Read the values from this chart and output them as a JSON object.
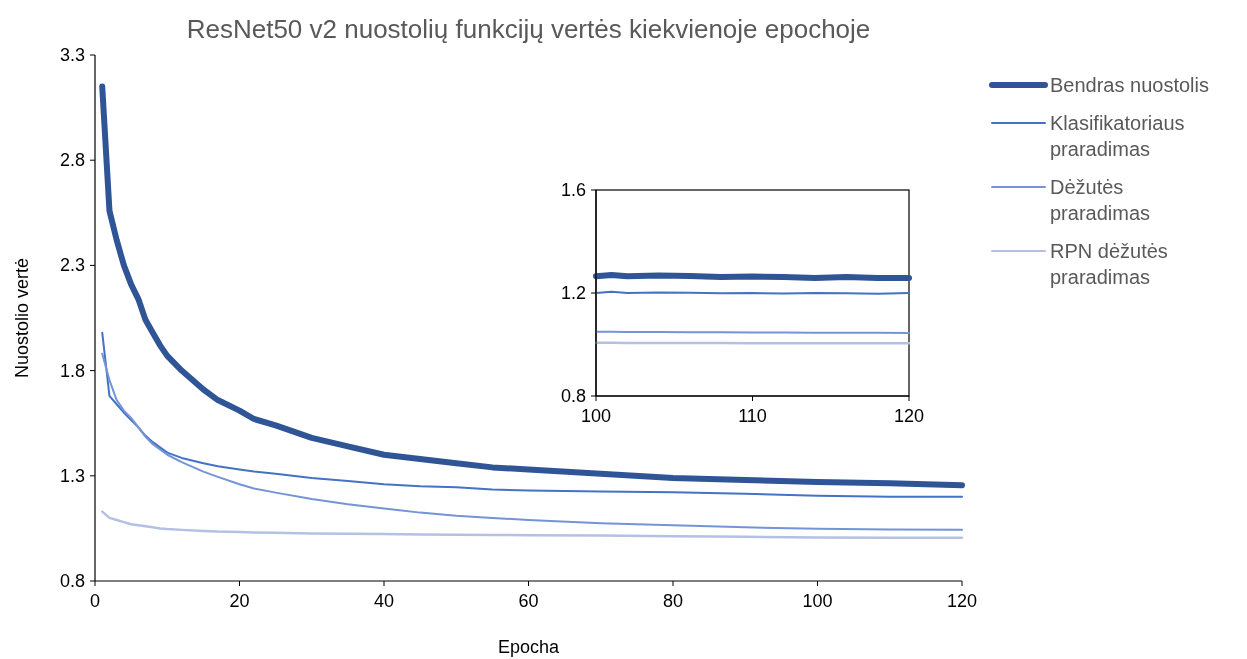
{
  "chart_data": [
    {
      "type": "line",
      "title": "ResNet50 v2 nuostolių funkcijų vertės kiekvienoje epochoje",
      "xlabel": "Epocha",
      "ylabel": "Nuostolio vertė",
      "xlim": [
        0,
        120
      ],
      "xticks": [
        0,
        20,
        40,
        60,
        80,
        100,
        120
      ],
      "ylim": [
        0.8,
        3.3
      ],
      "yticks": [
        0.8,
        1.3,
        1.8,
        2.3,
        2.8,
        3.3
      ],
      "grid": false,
      "legend": "right",
      "marker": "none",
      "line_style": "solid",
      "x": [
        1,
        2,
        3,
        4,
        5,
        6,
        7,
        8,
        9,
        10,
        12,
        15,
        17,
        20,
        22,
        25,
        30,
        35,
        40,
        45,
        50,
        55,
        60,
        70,
        80,
        90,
        100,
        110,
        120
      ],
      "series": [
        {
          "name": "Bendras nuostolis",
          "color": "#2f5597",
          "values": [
            3.15,
            2.56,
            2.42,
            2.3,
            2.21,
            2.14,
            2.04,
            1.98,
            1.92,
            1.87,
            1.8,
            1.71,
            1.66,
            1.61,
            1.57,
            1.54,
            1.48,
            1.44,
            1.4,
            1.38,
            1.36,
            1.34,
            1.33,
            1.31,
            1.29,
            1.28,
            1.27,
            1.265,
            1.255
          ]
        },
        {
          "name": "Klasifikatoriaus praradimas",
          "color": "#4472c4",
          "values": [
            1.98,
            1.68,
            1.64,
            1.6,
            1.565,
            1.53,
            1.49,
            1.46,
            1.435,
            1.41,
            1.385,
            1.36,
            1.345,
            1.33,
            1.32,
            1.31,
            1.29,
            1.275,
            1.26,
            1.25,
            1.245,
            1.235,
            1.23,
            1.225,
            1.222,
            1.215,
            1.205,
            1.2,
            1.2
          ]
        },
        {
          "name": "Dėžutės praradimas",
          "color": "#7394d6",
          "values": [
            1.88,
            1.755,
            1.66,
            1.61,
            1.575,
            1.53,
            1.485,
            1.45,
            1.425,
            1.4,
            1.365,
            1.32,
            1.295,
            1.26,
            1.24,
            1.22,
            1.19,
            1.165,
            1.145,
            1.125,
            1.11,
            1.1,
            1.09,
            1.075,
            1.065,
            1.055,
            1.048,
            1.045,
            1.043
          ]
        },
        {
          "name": "RPN dėžutės praradimas",
          "color": "#b4c0e4",
          "values": [
            1.13,
            1.1,
            1.09,
            1.08,
            1.07,
            1.065,
            1.06,
            1.055,
            1.05,
            1.047,
            1.043,
            1.038,
            1.035,
            1.033,
            1.031,
            1.029,
            1.026,
            1.024,
            1.023,
            1.021,
            1.02,
            1.019,
            1.018,
            1.016,
            1.013,
            1.01,
            1.007,
            1.006,
            1.005
          ]
        }
      ]
    },
    {
      "type": "line",
      "xlim": [
        100,
        120
      ],
      "xticks": [
        100,
        110,
        120
      ],
      "ylim": [
        0.8,
        1.6
      ],
      "yticks": [
        0.8,
        1.2,
        1.6
      ],
      "grid": false,
      "legend": false,
      "marker": "none",
      "line_style": "solid",
      "x": [
        100,
        101,
        102,
        104,
        106,
        108,
        110,
        112,
        114,
        116,
        118,
        120
      ],
      "series": [
        {
          "color": "#2f5597",
          "values": [
            1.265,
            1.27,
            1.265,
            1.268,
            1.266,
            1.262,
            1.264,
            1.262,
            1.258,
            1.262,
            1.258,
            1.258
          ]
        },
        {
          "color": "#4472c4",
          "values": [
            1.2,
            1.205,
            1.2,
            1.202,
            1.201,
            1.199,
            1.2,
            1.198,
            1.2,
            1.199,
            1.197,
            1.2
          ]
        },
        {
          "color": "#7394d6",
          "values": [
            1.05,
            1.05,
            1.049,
            1.049,
            1.048,
            1.048,
            1.047,
            1.047,
            1.046,
            1.046,
            1.046,
            1.045
          ]
        },
        {
          "color": "#b4c0e4",
          "values": [
            1.007,
            1.007,
            1.006,
            1.006,
            1.006,
            1.006,
            1.005,
            1.005,
            1.005,
            1.005,
            1.005,
            1.005
          ]
        }
      ]
    }
  ]
}
